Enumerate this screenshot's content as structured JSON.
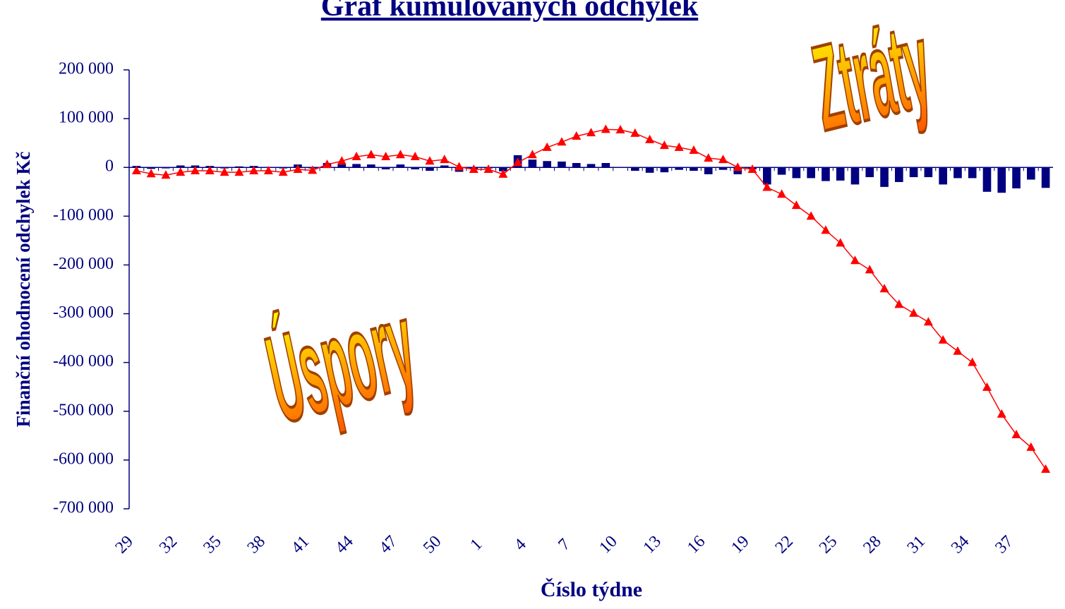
{
  "chart_data": {
    "type": "bar-line",
    "title": "Graf kumulovaných odchylek",
    "y_label": "Finanční ohodnocení odchylek Kč",
    "x_label": "Číslo týdne",
    "annotations": [
      "Ztráty",
      "Úspory"
    ],
    "categories": [
      "29",
      null,
      null,
      "32",
      null,
      null,
      "35",
      null,
      null,
      "38",
      null,
      null,
      "41",
      null,
      null,
      "44",
      null,
      null,
      "47",
      null,
      null,
      "50",
      null,
      null,
      "1",
      null,
      null,
      "4",
      null,
      null,
      "7",
      null,
      null,
      "10",
      null,
      null,
      "13",
      null,
      null,
      "16",
      null,
      null,
      "19",
      null,
      null,
      "22",
      null,
      null,
      "25",
      null,
      null,
      "28",
      null,
      null,
      "31",
      null,
      null,
      "34",
      null,
      null,
      "37",
      null,
      null
    ],
    "series": [
      {
        "type": "bar",
        "color": "#000080",
        "values": [
          3000,
          -3000,
          -2000,
          4000,
          4000,
          3000,
          -2000,
          2000,
          3000,
          0,
          -2000,
          6000,
          -2000,
          9000,
          6000,
          7000,
          6000,
          -4000,
          6000,
          -4000,
          -7000,
          4000,
          -9000,
          -3000,
          -2000,
          -8000,
          25000,
          16000,
          13000,
          12000,
          9000,
          7000,
          9000,
          -1000,
          -7000,
          -11000,
          -10000,
          -5000,
          -7000,
          -14000,
          -5000,
          -14000,
          -4000,
          -35000,
          -15000,
          -22000,
          -22000,
          -28000,
          -27000,
          -35000,
          -20000,
          -40000,
          -30000,
          -20000,
          -20000,
          -35000,
          -22000,
          -22000,
          -50000,
          -52000,
          -43000,
          -25000,
          -42000
        ]
      },
      {
        "type": "line",
        "color": "#ff0000",
        "values": [
          -7000,
          -13000,
          -16000,
          -10000,
          -7000,
          -7000,
          -10000,
          -10000,
          -7000,
          -7000,
          -10000,
          -4000,
          -6000,
          6000,
          13000,
          22000,
          26000,
          22000,
          26000,
          22000,
          13000,
          16000,
          1000,
          -4000,
          -4000,
          -14000,
          10000,
          26000,
          41000,
          52000,
          64000,
          71000,
          78000,
          77000,
          70000,
          57000,
          45000,
          41000,
          35000,
          19000,
          16000,
          0,
          -4000,
          -41000,
          -55000,
          -78000,
          -100000,
          -129000,
          -155000,
          -191000,
          -210000,
          -249000,
          -281000,
          -299000,
          -317000,
          -354000,
          -377000,
          -400000,
          -451000,
          -506000,
          -548000,
          -574000,
          -619000
        ]
      }
    ],
    "ylim": [
      -700000,
      200000
    ],
    "yticks": [
      {
        "value": 200000,
        "label": "200 000"
      },
      {
        "value": 100000,
        "label": "100 000"
      },
      0,
      {
        "value": -100000,
        "label": "-100 000"
      },
      {
        "value": -200000,
        "label": "-200 000"
      },
      {
        "value": -300000,
        "label": "-300 000"
      },
      {
        "value": -400000,
        "label": "-400 000"
      },
      {
        "value": -500000,
        "label": "-500 000"
      },
      {
        "value": -600000,
        "label": "-600 000"
      },
      {
        "value": -700000,
        "label": "-700 000"
      }
    ],
    "grid": false
  }
}
